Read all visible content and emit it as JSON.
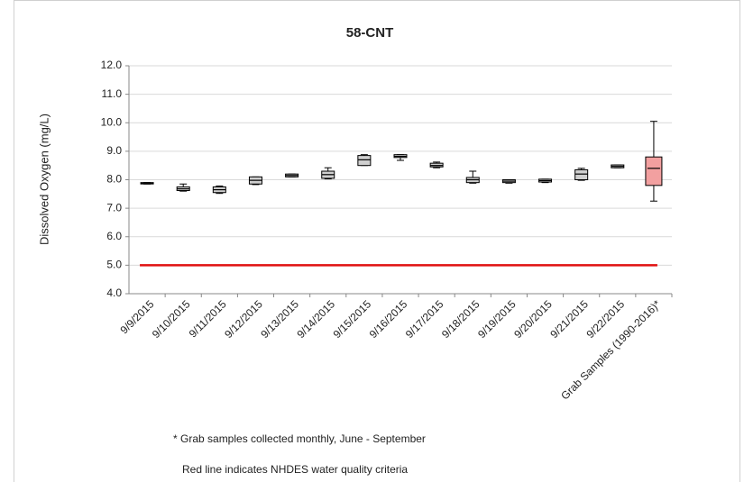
{
  "chart_data": {
    "type": "box",
    "title": "58-CNT",
    "y_label": "Dissolved Oxygen (mg/L)",
    "categories": [
      "9/9/2015",
      "9/10/2015",
      "9/11/2015",
      "9/12/2015",
      "9/13/2015",
      "9/14/2015",
      "9/15/2015",
      "9/16/2015",
      "9/17/2015",
      "9/18/2015",
      "9/19/2015",
      "9/20/2015",
      "9/21/2015",
      "9/22/2015",
      "Grab Samples (1990-2016)*"
    ],
    "min": [
      7.85,
      7.6,
      7.52,
      7.83,
      8.1,
      8.03,
      8.5,
      8.68,
      8.42,
      7.88,
      7.88,
      7.9,
      7.98,
      8.42,
      7.25
    ],
    "q1": [
      7.87,
      7.62,
      7.55,
      7.85,
      8.1,
      8.05,
      8.5,
      8.78,
      8.45,
      7.9,
      7.9,
      7.92,
      8.0,
      8.42,
      7.8
    ],
    "median": [
      7.88,
      7.68,
      7.65,
      7.98,
      8.15,
      8.18,
      8.7,
      8.82,
      8.5,
      8.0,
      7.95,
      7.97,
      8.2,
      8.47,
      8.4
    ],
    "q3": [
      7.9,
      7.75,
      7.75,
      8.1,
      8.2,
      8.3,
      8.85,
      8.88,
      8.58,
      8.08,
      8.0,
      8.02,
      8.35,
      8.52,
      8.8
    ],
    "max": [
      7.9,
      7.85,
      7.78,
      8.1,
      8.2,
      8.42,
      8.88,
      8.88,
      8.62,
      8.3,
      8.0,
      8.02,
      8.4,
      8.52,
      10.05
    ],
    "colors": [
      "#cfcfcf",
      "#cfcfcf",
      "#cfcfcf",
      "#cfcfcf",
      "#cfcfcf",
      "#cfcfcf",
      "#cfcfcf",
      "#cfcfcf",
      "#cfcfcf",
      "#cfcfcf",
      "#cfcfcf",
      "#cfcfcf",
      "#cfcfcf",
      "#cfcfcf",
      "#f2a0a0"
    ],
    "reference_line": {
      "value": 5.0,
      "color": "#e01010"
    },
    "ylim": [
      4.0,
      12.0
    ],
    "yticks": [
      {
        "value": 4,
        "label": "4.0"
      },
      {
        "value": 5,
        "label": "5.0"
      },
      {
        "value": 6,
        "label": "6.0"
      },
      {
        "value": 7,
        "label": "7.0"
      },
      {
        "value": 8,
        "label": "8.0"
      },
      {
        "value": 9,
        "label": "9.0"
      },
      {
        "value": 10,
        "label": "10.0"
      },
      {
        "value": 11,
        "label": "11.0"
      },
      {
        "value": 12,
        "label": "12.0"
      }
    ],
    "grid": true,
    "notes": [
      "* Grab samples collected monthly, June - September",
      "Red line indicates NHDES water quality criteria"
    ]
  }
}
